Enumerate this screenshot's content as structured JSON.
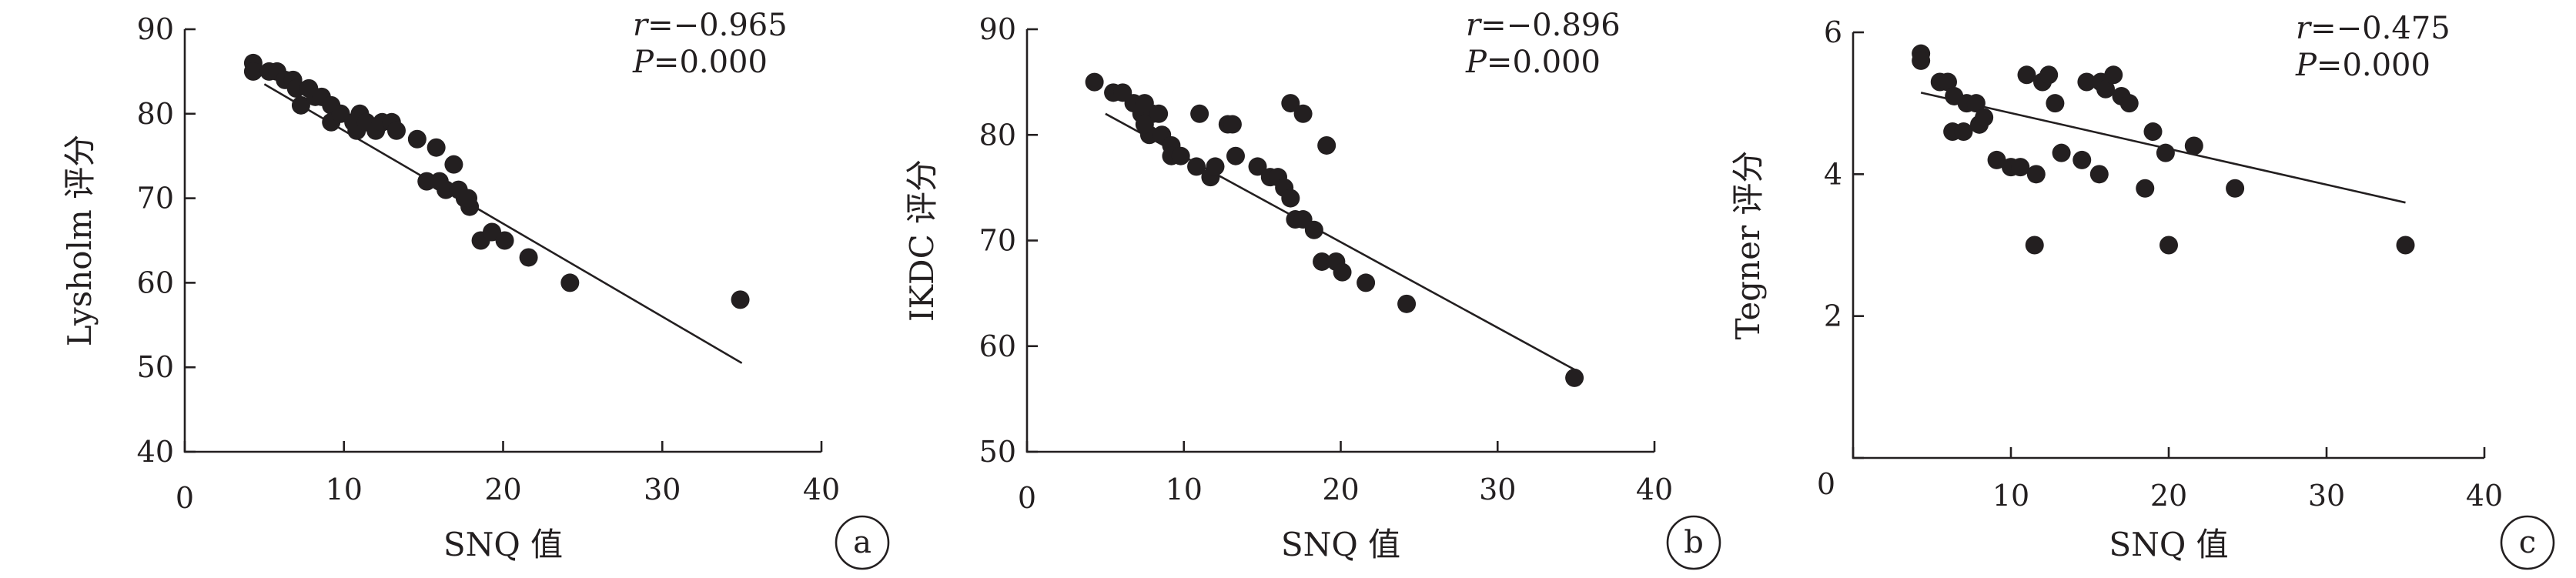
{
  "chart_data": [
    {
      "type": "scatter",
      "panel": "a",
      "xlabel": "SNQ 值",
      "ylabel": "Lysholm 评分",
      "xlim": [
        0,
        40
      ],
      "ylim": [
        40,
        90
      ],
      "xticks": [
        0,
        10,
        20,
        30,
        40
      ],
      "yticks": [
        40,
        50,
        60,
        70,
        80,
        90
      ],
      "annotation": {
        "r_symbol": "r",
        "r_value": "=−0.965",
        "p_symbol": "P",
        "p_value": "=0.000"
      },
      "fit": {
        "x": [
          5,
          35
        ],
        "y": [
          83.5,
          50.5
        ]
      },
      "points": [
        [
          4.3,
          86
        ],
        [
          4.3,
          85
        ],
        [
          5.3,
          85
        ],
        [
          5.8,
          85
        ],
        [
          6.3,
          84
        ],
        [
          6.8,
          84
        ],
        [
          7.0,
          83
        ],
        [
          7.3,
          81
        ],
        [
          7.8,
          83
        ],
        [
          8.2,
          82
        ],
        [
          8.6,
          82
        ],
        [
          9.2,
          81
        ],
        [
          9.2,
          79
        ],
        [
          9.8,
          80
        ],
        [
          10.6,
          79
        ],
        [
          10.8,
          78
        ],
        [
          11.0,
          80
        ],
        [
          11.4,
          79
        ],
        [
          12.0,
          78
        ],
        [
          12.4,
          79
        ],
        [
          13.0,
          79
        ],
        [
          13.3,
          78
        ],
        [
          14.6,
          77
        ],
        [
          15.2,
          72
        ],
        [
          15.8,
          76
        ],
        [
          16.0,
          72
        ],
        [
          16.4,
          71
        ],
        [
          16.9,
          74
        ],
        [
          17.2,
          71
        ],
        [
          17.6,
          70
        ],
        [
          17.9,
          69
        ],
        [
          17.8,
          70
        ],
        [
          18.6,
          65
        ],
        [
          19.3,
          66
        ],
        [
          20.1,
          65
        ],
        [
          21.6,
          63
        ],
        [
          24.2,
          60
        ],
        [
          34.9,
          58
        ]
      ]
    },
    {
      "type": "scatter",
      "panel": "b",
      "xlabel": "SNQ 值",
      "ylabel": "IKDC 评分",
      "xlim": [
        0,
        40
      ],
      "ylim": [
        50,
        90
      ],
      "xticks": [
        0,
        10,
        20,
        30,
        40
      ],
      "yticks": [
        50,
        60,
        70,
        80,
        90
      ],
      "annotation": {
        "r_symbol": "r",
        "r_value": "=−0.896",
        "p_symbol": "P",
        "p_value": "=0.000"
      },
      "fit": {
        "x": [
          5,
          35
        ],
        "y": [
          82,
          57.7
        ]
      },
      "points": [
        [
          4.3,
          85
        ],
        [
          5.5,
          84
        ],
        [
          6.1,
          84
        ],
        [
          6.8,
          83
        ],
        [
          7.3,
          82
        ],
        [
          7.5,
          83
        ],
        [
          8.0,
          82
        ],
        [
          8.4,
          82
        ],
        [
          7.8,
          80
        ],
        [
          8.6,
          80
        ],
        [
          7.5,
          81
        ],
        [
          9.2,
          79
        ],
        [
          9.2,
          78
        ],
        [
          9.8,
          78
        ],
        [
          10.8,
          77
        ],
        [
          11.0,
          82
        ],
        [
          11.7,
          76
        ],
        [
          12.0,
          77
        ],
        [
          12.8,
          81
        ],
        [
          13.1,
          81
        ],
        [
          13.3,
          78
        ],
        [
          14.7,
          77
        ],
        [
          15.5,
          76
        ],
        [
          16.0,
          76
        ],
        [
          16.4,
          75
        ],
        [
          16.8,
          74
        ],
        [
          17.1,
          72
        ],
        [
          16.8,
          83
        ],
        [
          17.6,
          82
        ],
        [
          17.6,
          72
        ],
        [
          18.3,
          71
        ],
        [
          18.8,
          68
        ],
        [
          19.1,
          79
        ],
        [
          19.7,
          68
        ],
        [
          20.1,
          67
        ],
        [
          21.6,
          66
        ],
        [
          24.2,
          64
        ],
        [
          34.9,
          57
        ]
      ]
    },
    {
      "type": "scatter",
      "panel": "c",
      "xlabel": "SNQ 值",
      "ylabel": "Tegner 评分",
      "xlim": [
        0,
        40
      ],
      "ylim": [
        0,
        6
      ],
      "xticks": [
        0,
        10,
        20,
        30,
        40
      ],
      "yticks": [
        0,
        2,
        4,
        6
      ],
      "hidden_y_tick_labels": [
        0
      ],
      "annotation": {
        "r_symbol": "r",
        "r_value": "=−0.475",
        "p_symbol": "P",
        "p_value": "=0.000"
      },
      "fit": {
        "x": [
          4.3,
          35
        ],
        "y": [
          5.15,
          3.6
        ]
      },
      "points": [
        [
          4.3,
          5.7
        ],
        [
          4.3,
          5.6
        ],
        [
          5.5,
          5.3
        ],
        [
          6.0,
          5.3
        ],
        [
          6.4,
          5.1
        ],
        [
          6.3,
          4.6
        ],
        [
          7.0,
          4.6
        ],
        [
          7.2,
          5.0
        ],
        [
          7.8,
          5.0
        ],
        [
          8.0,
          4.7
        ],
        [
          8.3,
          4.8
        ],
        [
          9.1,
          4.2
        ],
        [
          10.0,
          4.1
        ],
        [
          10.6,
          4.1
        ],
        [
          11.0,
          5.4
        ],
        [
          11.5,
          3.0
        ],
        [
          11.6,
          4.0
        ],
        [
          12.0,
          5.3
        ],
        [
          12.4,
          5.4
        ],
        [
          12.8,
          5.0
        ],
        [
          13.2,
          4.3
        ],
        [
          14.5,
          4.2
        ],
        [
          14.8,
          5.3
        ],
        [
          15.6,
          4.0
        ],
        [
          15.7,
          5.3
        ],
        [
          16.0,
          5.2
        ],
        [
          16.5,
          5.4
        ],
        [
          17.0,
          5.1
        ],
        [
          17.5,
          5.0
        ],
        [
          18.5,
          3.8
        ],
        [
          19.0,
          4.6
        ],
        [
          19.8,
          4.3
        ],
        [
          20.0,
          3.0
        ],
        [
          21.6,
          4.4
        ],
        [
          24.2,
          3.8
        ],
        [
          35.0,
          3.0
        ]
      ]
    }
  ]
}
